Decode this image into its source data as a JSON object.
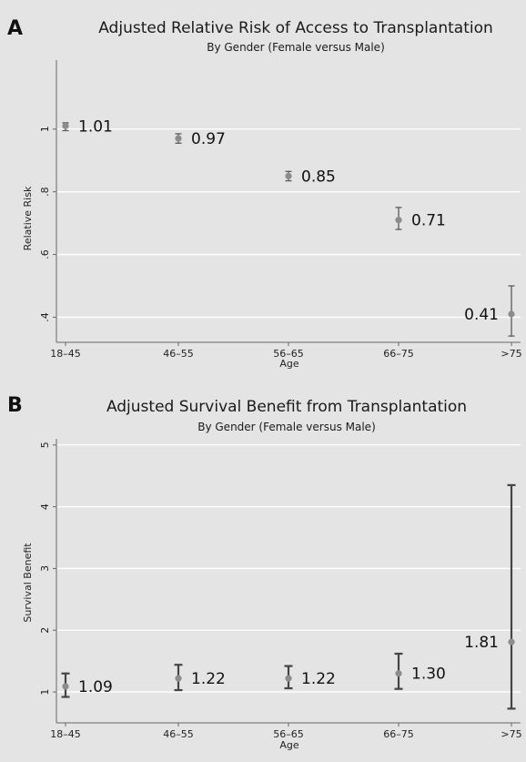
{
  "chart_data": [
    {
      "type": "scatter",
      "panel_letter": "A",
      "title": "Adjusted Relative Risk of Access to Transplantation",
      "subtitle": "By Gender (Female versus Male)",
      "xlabel": "Age",
      "ylabel": "Relative Risk",
      "categories": [
        "18–45",
        "46–55",
        "56–65",
        "66–75",
        ">75"
      ],
      "values": [
        1.01,
        0.97,
        0.85,
        0.71,
        0.41
      ],
      "ci_low": [
        0.995,
        0.955,
        0.835,
        0.68,
        0.34
      ],
      "ci_high": [
        1.02,
        0.985,
        0.865,
        0.75,
        0.5
      ],
      "value_labels": [
        "1.01",
        "0.97",
        "0.85",
        "0.71",
        "0.41"
      ],
      "yticks": [
        0.4,
        0.6,
        0.8,
        1.0
      ],
      "ytick_labels": [
        ".4",
        ".6",
        ".8",
        "1"
      ],
      "ylim": [
        0.32,
        1.22
      ],
      "grid": true,
      "marker_color": "#8c8c8c",
      "errorbar_color": "#5a5a5a"
    },
    {
      "type": "scatter",
      "panel_letter": "B",
      "title": "Adjusted Survival Benefit from Transplantation",
      "subtitle": "By Gender (Female versus Male)",
      "xlabel": "Age",
      "ylabel": "Survival Benefit",
      "categories": [
        "18–45",
        "46–55",
        "56–65",
        "66–75",
        ">75"
      ],
      "values": [
        1.09,
        1.22,
        1.22,
        1.3,
        1.81
      ],
      "ci_low": [
        0.92,
        1.03,
        1.06,
        1.05,
        0.73
      ],
      "ci_high": [
        1.3,
        1.44,
        1.42,
        1.62,
        4.35
      ],
      "value_labels": [
        "1.09",
        "1.22",
        "1.22",
        "1.30",
        "1.81"
      ],
      "yticks": [
        1,
        2,
        3,
        4,
        5
      ],
      "ytick_labels": [
        "1",
        "2",
        "3",
        "4",
        "5"
      ],
      "ylim": [
        0.5,
        5.1
      ],
      "grid": true,
      "marker_color": "#8c8c8c",
      "errorbar_color": "#444444"
    }
  ]
}
